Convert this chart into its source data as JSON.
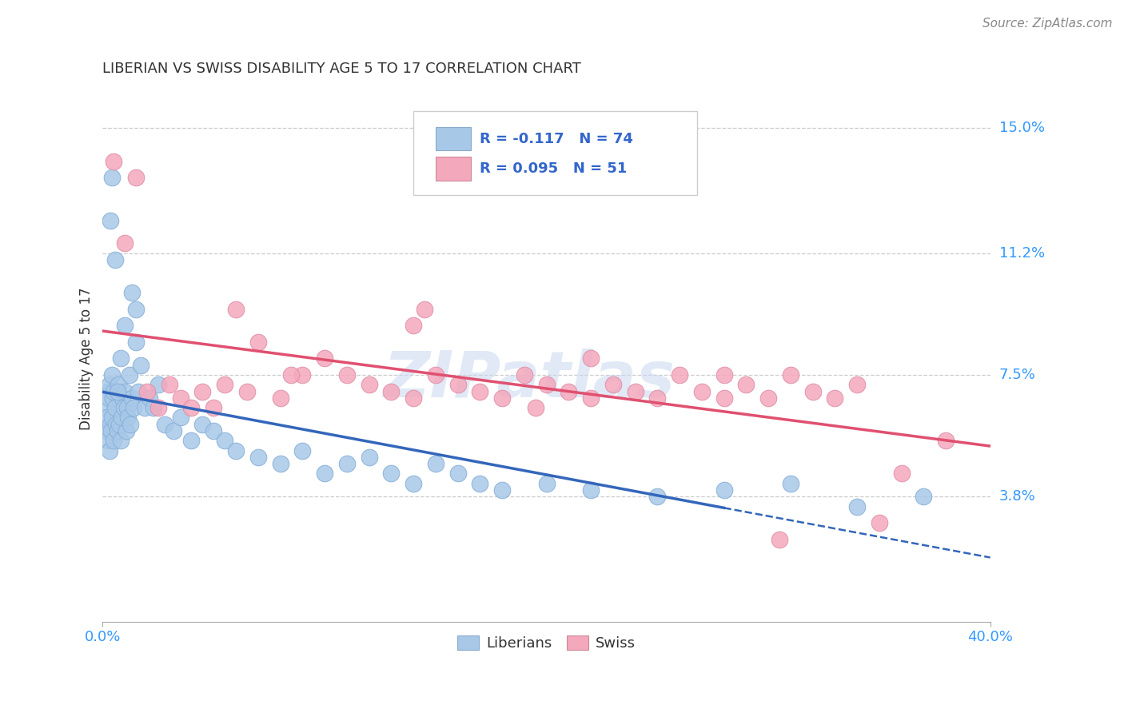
{
  "title": "LIBERIAN VS SWISS DISABILITY AGE 5 TO 17 CORRELATION CHART",
  "source": "Source: ZipAtlas.com",
  "ylabel": "Disability Age 5 to 17",
  "xlim": [
    0.0,
    40.0
  ],
  "ylim": [
    0.0,
    16.0
  ],
  "yticks": [
    3.8,
    7.5,
    11.2,
    15.0
  ],
  "ytick_labels": [
    "3.8%",
    "7.5%",
    "11.2%",
    "15.0%"
  ],
  "xtick_labels": [
    "0.0%",
    "40.0%"
  ],
  "liberian_R": -0.117,
  "liberian_N": 74,
  "swiss_R": 0.095,
  "swiss_N": 51,
  "liberian_color": "#a8c8e8",
  "swiss_color": "#f4a8bc",
  "liberian_line_color": "#3366bb",
  "swiss_line_color": "#e05070",
  "background_color": "#ffffff",
  "watermark": "ZIPatlas",
  "liberian_x": [
    0.15,
    0.18,
    0.2,
    0.22,
    0.25,
    0.28,
    0.3,
    0.32,
    0.35,
    0.38,
    0.4,
    0.42,
    0.45,
    0.48,
    0.5,
    0.55,
    0.6,
    0.65,
    0.7,
    0.75,
    0.8,
    0.85,
    0.9,
    0.95,
    1.0,
    1.05,
    1.1,
    1.15,
    1.2,
    1.25,
    1.3,
    1.4,
    1.5,
    1.6,
    1.7,
    1.9,
    2.1,
    2.3,
    2.5,
    2.8,
    3.2,
    3.5,
    4.0,
    4.5,
    5.0,
    5.5,
    6.0,
    7.0,
    8.0,
    9.0,
    10.0,
    11.0,
    12.0,
    13.0,
    14.0,
    15.0,
    16.0,
    17.0,
    18.0,
    20.0,
    22.0,
    25.0,
    28.0,
    31.0,
    34.0,
    37.0,
    0.35,
    0.4,
    0.55,
    0.65,
    0.8,
    1.0,
    1.3,
    1.5
  ],
  "liberian_y": [
    6.5,
    5.8,
    6.2,
    7.0,
    5.5,
    6.8,
    7.2,
    5.2,
    6.0,
    5.8,
    7.5,
    6.2,
    6.8,
    5.5,
    7.0,
    6.5,
    6.0,
    5.8,
    7.2,
    6.0,
    5.5,
    6.2,
    6.8,
    6.5,
    7.0,
    5.8,
    6.5,
    6.2,
    7.5,
    6.0,
    6.8,
    6.5,
    8.5,
    7.0,
    7.8,
    6.5,
    6.8,
    6.5,
    7.2,
    6.0,
    5.8,
    6.2,
    5.5,
    6.0,
    5.8,
    5.5,
    5.2,
    5.0,
    4.8,
    5.2,
    4.5,
    4.8,
    5.0,
    4.5,
    4.2,
    4.8,
    4.5,
    4.2,
    4.0,
    4.2,
    4.0,
    3.8,
    4.0,
    4.2,
    3.5,
    3.8,
    12.2,
    13.5,
    11.0,
    7.0,
    8.0,
    9.0,
    10.0,
    9.5
  ],
  "swiss_x": [
    0.5,
    1.0,
    1.5,
    2.0,
    2.5,
    3.0,
    3.5,
    4.0,
    4.5,
    5.0,
    5.5,
    6.0,
    7.0,
    8.0,
    9.0,
    10.0,
    11.0,
    12.0,
    13.0,
    14.0,
    15.0,
    16.0,
    17.0,
    18.0,
    19.0,
    20.0,
    21.0,
    22.0,
    23.0,
    24.0,
    25.0,
    26.0,
    27.0,
    28.0,
    29.0,
    30.0,
    31.0,
    32.0,
    33.0,
    34.0,
    35.0,
    36.0,
    38.0,
    14.5,
    28.0,
    22.0,
    6.5,
    8.5,
    19.5,
    30.5,
    14.0
  ],
  "swiss_y": [
    14.0,
    11.5,
    13.5,
    7.0,
    6.5,
    7.2,
    6.8,
    6.5,
    7.0,
    6.5,
    7.2,
    9.5,
    8.5,
    6.8,
    7.5,
    8.0,
    7.5,
    7.2,
    7.0,
    6.8,
    7.5,
    7.2,
    7.0,
    6.8,
    7.5,
    7.2,
    7.0,
    6.8,
    7.2,
    7.0,
    6.8,
    7.5,
    7.0,
    6.8,
    7.2,
    6.8,
    7.5,
    7.0,
    6.8,
    7.2,
    3.0,
    4.5,
    5.5,
    9.5,
    7.5,
    8.0,
    7.0,
    7.5,
    6.5,
    2.5,
    9.0
  ]
}
